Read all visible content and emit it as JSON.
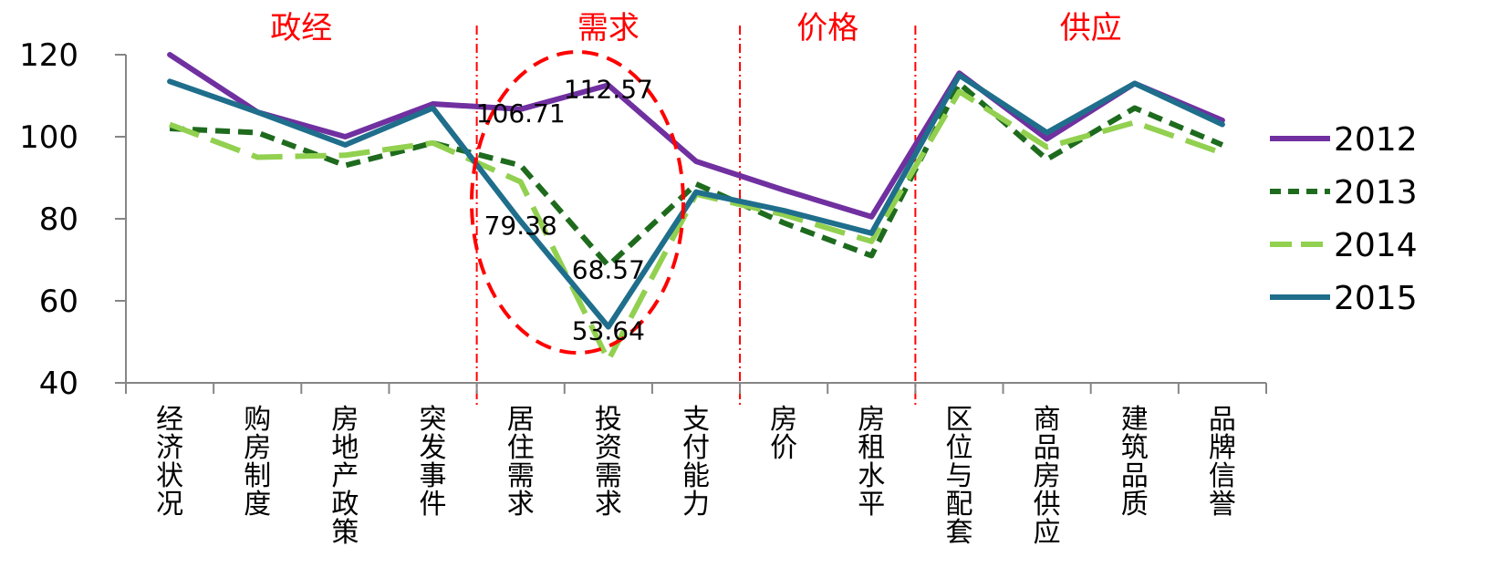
{
  "chart_data": {
    "type": "line",
    "categories": [
      "经济状况",
      "购房制度",
      "房地产政策",
      "突发事件",
      "居住需求",
      "投资需求",
      "支付能力",
      "房价",
      "房租水平",
      "区位与配套",
      "商品房供应",
      "建筑品质",
      "品牌信誉"
    ],
    "series": [
      {
        "name": "2012",
        "color": "#7030A0",
        "style": "solid",
        "values": [
          120,
          106,
          100,
          108,
          106.71,
          112.57,
          94,
          87,
          80.5,
          115.5,
          99.5,
          113,
          104
        ]
      },
      {
        "name": "2013",
        "color": "#1E6B1E",
        "style": "dashed",
        "values": [
          102,
          101,
          93,
          98.5,
          93,
          68.57,
          88.5,
          79,
          71,
          113,
          94.5,
          107,
          98
        ]
      },
      {
        "name": "2014",
        "color": "#92D050",
        "style": "long-dashed",
        "values": [
          103,
          95,
          95.5,
          98.5,
          89,
          45.5,
          86,
          81,
          74.5,
          111,
          97.5,
          103.5,
          96
        ]
      },
      {
        "name": "2015",
        "color": "#1F6E8C",
        "style": "solid",
        "values": [
          113.5,
          106,
          98,
          107,
          79.38,
          53.64,
          86.5,
          82,
          76.5,
          115,
          101,
          113,
          103
        ]
      }
    ],
    "ylim": [
      40,
      120
    ],
    "yticks": [
      40,
      60,
      80,
      100,
      120
    ],
    "grid": false,
    "legend": "right",
    "sections": [
      {
        "label": "政经",
        "color": "#FF0000"
      },
      {
        "label": "需求",
        "color": "#FF0000"
      },
      {
        "label": "价格",
        "color": "#FF0000"
      },
      {
        "label": "供应",
        "color": "#FF0000"
      }
    ],
    "data_labels": [
      {
        "text": "106.71",
        "series": "2012",
        "category": "居住需求"
      },
      {
        "text": "112.57",
        "series": "2012",
        "category": "投资需求"
      },
      {
        "text": "79.38",
        "series": "2015",
        "category": "居住需求"
      },
      {
        "text": "68.57",
        "series": "2013",
        "category": "投资需求"
      },
      {
        "text": "53.64",
        "series": "2015",
        "category": "投资需求"
      }
    ],
    "annotation": {
      "shape": "dashed-ellipse",
      "color": "#FF0000",
      "around": "需求"
    }
  }
}
